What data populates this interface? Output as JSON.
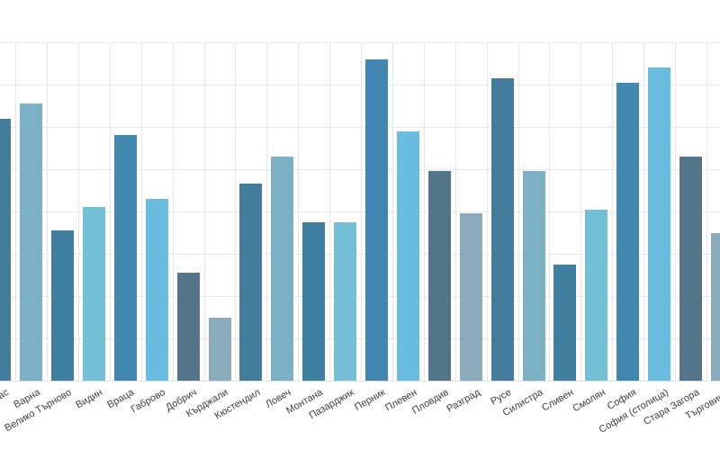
{
  "chart_data": {
    "type": "bar",
    "title": "",
    "xlabel": "",
    "ylabel": "",
    "grid": true,
    "legend": "none",
    "x_tick_rotation_deg": -30,
    "y_axis_tick_labels_visible": false,
    "ylim_gridline_units": [
      0,
      8
    ],
    "values_note": "values estimated in horizontal-gridline units; numeric y-axis labels are cropped outside the visible area",
    "categories": [
      "Бургас",
      "Варна",
      "Велико Търново",
      "Видин",
      "Враца",
      "Габрово",
      "Добрич",
      "Кърджали",
      "Кюстендил",
      "Ловеч",
      "Монтана",
      "Пазарджик",
      "Перник",
      "Плевен",
      "Пловдив",
      "Разград",
      "Русе",
      "Силистра",
      "Сливен",
      "Смолян",
      "София",
      "София (столица)",
      "Стара Загора",
      "Търговище"
    ],
    "values": [
      6.2,
      6.55,
      3.55,
      4.1,
      5.8,
      4.3,
      2.55,
      1.5,
      4.65,
      5.3,
      3.75,
      3.75,
      7.6,
      5.9,
      4.95,
      3.95,
      7.15,
      4.95,
      2.75,
      4.05,
      7.05,
      7.4,
      5.3,
      3.5
    ],
    "bar_colors": [
      "#447d9b",
      "#7cb0c5",
      "#3f7f9f",
      "#73c0d6",
      "#4187b0",
      "#68bde0",
      "#53758a",
      "#89abbb",
      "#447d9b",
      "#7cb0c5",
      "#3f7f9f",
      "#73c0d6",
      "#4187b0",
      "#68bde0",
      "#53758a",
      "#89abbb",
      "#447d9b",
      "#7cb0c5",
      "#3f7f9f",
      "#73c0d6",
      "#4187b0",
      "#68bde0",
      "#53758a",
      "#89abbb"
    ]
  },
  "colors": {
    "background": "#ffffff",
    "gridline": "#e7e7e7",
    "tick_label": "#3d3d3d"
  }
}
